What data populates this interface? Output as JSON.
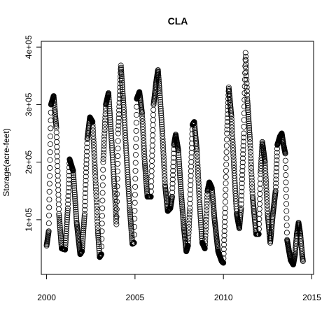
{
  "chart_data": {
    "type": "scatter",
    "title": "CLA",
    "xlabel": "",
    "ylabel": "Storage(acre-feet)",
    "xlim": [
      1999.7,
      2015.1
    ],
    "ylim": [
      5000,
      410000
    ],
    "x_ticks": [
      2000,
      2005,
      2010,
      2015
    ],
    "x_tick_labels": [
      "2000",
      "2005",
      "2010",
      "2015"
    ],
    "y_ticks": [
      100000,
      200000,
      300000,
      400000
    ],
    "y_tick_labels": [
      "1e+05",
      "2e+05",
      "3e+05",
      "4e+05"
    ],
    "grid": false,
    "marker": "open-circle",
    "series": [
      {
        "anchors": [
          [
            2000.0,
            55000
          ],
          [
            2000.12,
            80000
          ],
          [
            2000.25,
            300000
          ],
          [
            2000.4,
            315000
          ],
          [
            2000.55,
            260000
          ],
          [
            2000.7,
            110000
          ],
          [
            2000.85,
            50000
          ],
          [
            2001.05,
            48000
          ],
          [
            2001.2,
            120000
          ],
          [
            2001.3,
            205000
          ],
          [
            2001.5,
            185000
          ],
          [
            2001.7,
            95000
          ],
          [
            2001.9,
            40000
          ],
          [
            2002.0,
            45000
          ],
          [
            2002.15,
            110000
          ],
          [
            2002.3,
            240000
          ],
          [
            2002.45,
            278000
          ],
          [
            2002.6,
            270000
          ],
          [
            2002.75,
            180000
          ],
          [
            2002.9,
            80000
          ],
          [
            2003.0,
            35000
          ],
          [
            2003.1,
            40000
          ],
          [
            2003.2,
            200000
          ],
          [
            2003.35,
            300000
          ],
          [
            2003.5,
            320000
          ],
          [
            2003.65,
            250000
          ],
          [
            2003.85,
            150000
          ],
          [
            2003.95,
            92000
          ],
          [
            2004.05,
            250000
          ],
          [
            2004.15,
            330000
          ],
          [
            2004.2,
            368000
          ],
          [
            2004.35,
            300000
          ],
          [
            2004.5,
            220000
          ],
          [
            2004.7,
            120000
          ],
          [
            2004.85,
            58000
          ],
          [
            2004.95,
            60000
          ],
          [
            2005.1,
            310000
          ],
          [
            2005.25,
            322000
          ],
          [
            2005.4,
            285000
          ],
          [
            2005.55,
            200000
          ],
          [
            2005.7,
            140000
          ],
          [
            2005.9,
            140000
          ],
          [
            2006.05,
            300000
          ],
          [
            2006.2,
            340000
          ],
          [
            2006.3,
            360000
          ],
          [
            2006.4,
            320000
          ],
          [
            2006.55,
            250000
          ],
          [
            2006.7,
            160000
          ],
          [
            2006.85,
            115000
          ],
          [
            2007.0,
            120000
          ],
          [
            2007.1,
            140000
          ],
          [
            2007.2,
            230000
          ],
          [
            2007.3,
            248000
          ],
          [
            2007.45,
            220000
          ],
          [
            2007.6,
            150000
          ],
          [
            2007.75,
            90000
          ],
          [
            2007.9,
            45000
          ],
          [
            2008.0,
            55000
          ],
          [
            2008.1,
            120000
          ],
          [
            2008.25,
            265000
          ],
          [
            2008.35,
            270000
          ],
          [
            2008.5,
            220000
          ],
          [
            2008.65,
            130000
          ],
          [
            2008.8,
            60000
          ],
          [
            2008.95,
            50000
          ],
          [
            2009.1,
            150000
          ],
          [
            2009.2,
            165000
          ],
          [
            2009.35,
            155000
          ],
          [
            2009.5,
            100000
          ],
          [
            2009.7,
            45000
          ],
          [
            2009.9,
            28000
          ],
          [
            2010.0,
            25000
          ],
          [
            2010.1,
            120000
          ],
          [
            2010.2,
            250000
          ],
          [
            2010.3,
            330000
          ],
          [
            2010.45,
            280000
          ],
          [
            2010.6,
            190000
          ],
          [
            2010.75,
            110000
          ],
          [
            2010.9,
            85000
          ],
          [
            2011.0,
            120000
          ],
          [
            2011.15,
            250000
          ],
          [
            2011.25,
            390000
          ],
          [
            2011.35,
            310000
          ],
          [
            2011.5,
            240000
          ],
          [
            2011.65,
            140000
          ],
          [
            2011.85,
            75000
          ],
          [
            2012.0,
            75000
          ],
          [
            2012.1,
            180000
          ],
          [
            2012.2,
            235000
          ],
          [
            2012.35,
            200000
          ],
          [
            2012.5,
            110000
          ],
          [
            2012.65,
            60000
          ],
          [
            2012.8,
            110000
          ],
          [
            2012.95,
            150000
          ],
          [
            2013.05,
            230000
          ],
          [
            2013.2,
            245000
          ],
          [
            2013.3,
            250000
          ],
          [
            2013.4,
            230000
          ],
          [
            2013.5,
            215000
          ],
          [
            2013.6,
            65000
          ],
          [
            2013.8,
            30000
          ],
          [
            2013.95,
            22000
          ],
          [
            2014.05,
            40000
          ],
          [
            2014.15,
            75000
          ],
          [
            2014.25,
            95000
          ],
          [
            2014.35,
            75000
          ],
          [
            2014.45,
            40000
          ],
          [
            2014.5,
            28000
          ]
        ]
      }
    ]
  }
}
